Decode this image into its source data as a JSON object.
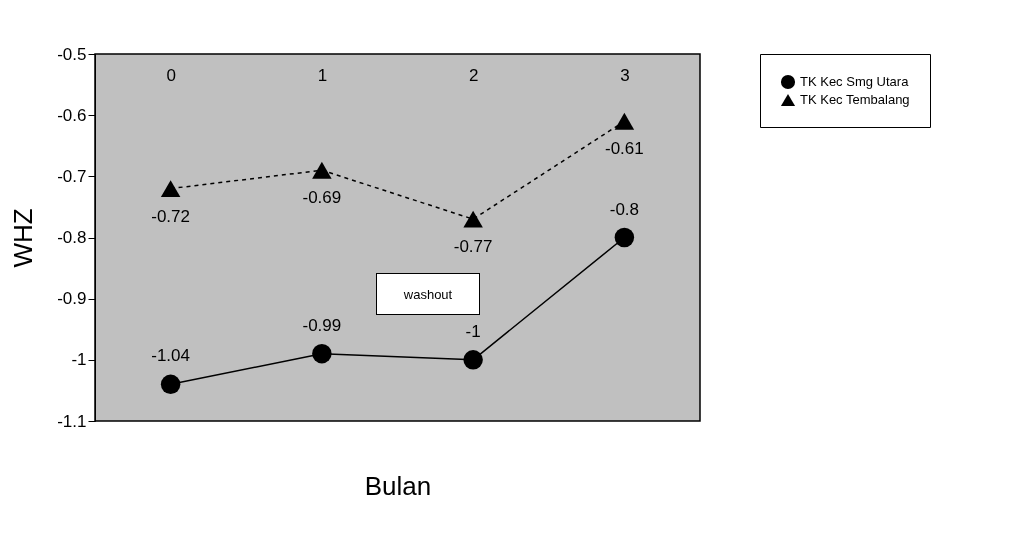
{
  "chart_data": {
    "type": "line",
    "xlabel": "Bulan",
    "ylabel": "WHZ",
    "categories": [
      "0",
      "1",
      "2",
      "3"
    ],
    "series": [
      {
        "name": "TK Kec Smg Utara",
        "color": "#000000",
        "marker": "circle",
        "line_style": "solid",
        "values": [
          -1.04,
          -0.99,
          -1,
          -0.8
        ]
      },
      {
        "name": "TK Kec Tembalang",
        "color": "#000000",
        "marker": "triangle",
        "line_style": "dashed",
        "values": [
          -0.72,
          -0.69,
          -0.77,
          -0.61
        ]
      }
    ],
    "ylim": [
      -1.1,
      -0.5
    ],
    "yticks": [
      {
        "value": -1.1,
        "label": "-1.1"
      },
      {
        "value": -1,
        "label": "-1"
      },
      {
        "value": -0.9,
        "label": "-0.9"
      },
      {
        "value": -0.8,
        "label": "-0.8"
      },
      {
        "value": -0.7,
        "label": "-0.7"
      },
      {
        "value": -0.6,
        "label": "-0.6"
      },
      {
        "value": -0.5,
        "label": "-0.5"
      }
    ],
    "data_labels": true,
    "legend": "right",
    "grid": false,
    "annotations": [
      "washout"
    ]
  }
}
